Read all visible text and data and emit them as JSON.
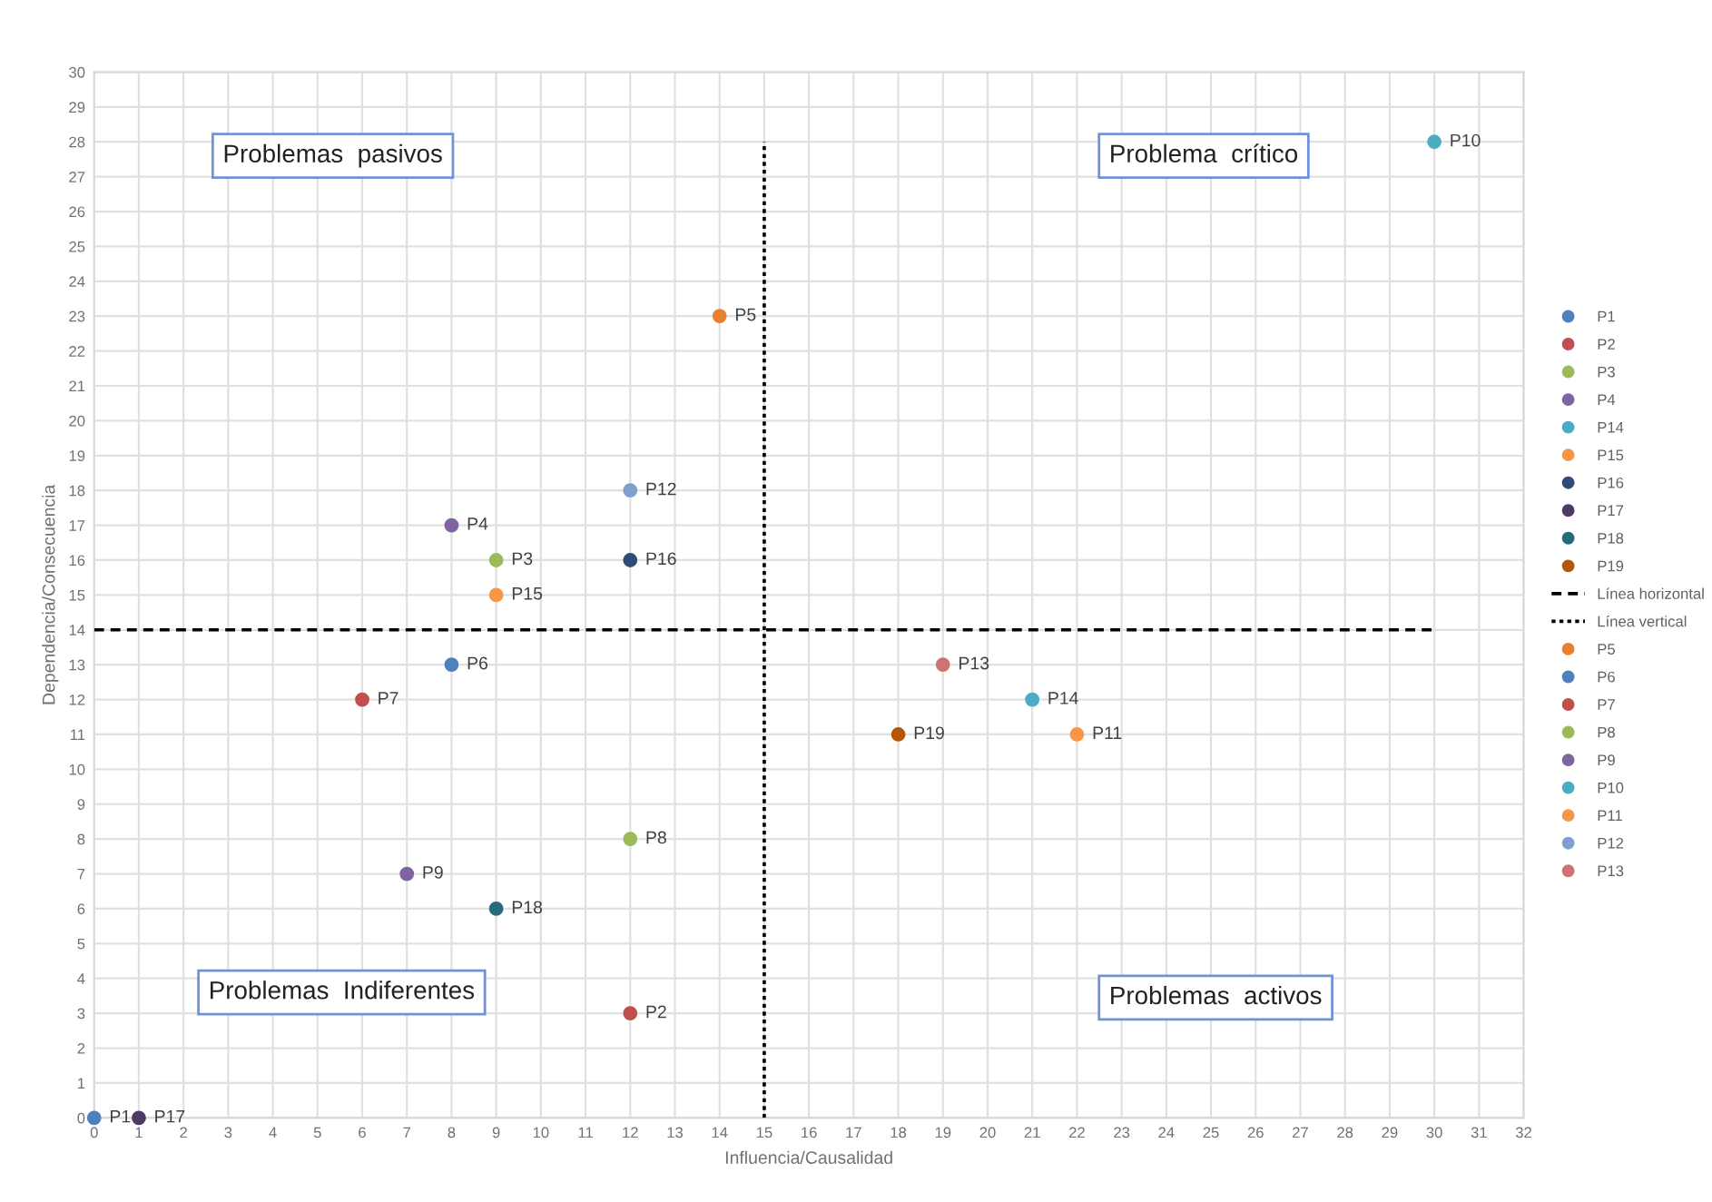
{
  "chart_data": {
    "type": "scatter",
    "xlabel": "Influencia/Causalidad",
    "ylabel": "Dependencia/Consecuencia",
    "xlim": [
      0,
      32
    ],
    "ylim": [
      0,
      30
    ],
    "xticks": [
      0,
      1,
      2,
      3,
      4,
      5,
      6,
      7,
      8,
      9,
      10,
      11,
      12,
      13,
      14,
      15,
      16,
      17,
      18,
      19,
      20,
      21,
      22,
      23,
      24,
      25,
      26,
      27,
      28,
      29,
      30,
      31,
      32
    ],
    "yticks": [
      0,
      1,
      2,
      3,
      4,
      5,
      6,
      7,
      8,
      9,
      10,
      11,
      12,
      13,
      14,
      15,
      16,
      17,
      18,
      19,
      20,
      21,
      22,
      23,
      24,
      25,
      26,
      27,
      28,
      29,
      30
    ],
    "grid": true,
    "legend": "right",
    "marker": "circle",
    "series": [
      {
        "name": "P1",
        "color": "#4f81bd",
        "x": [
          0
        ],
        "values": [
          0
        ]
      },
      {
        "name": "P2",
        "color": "#c0504d",
        "x": [
          12
        ],
        "values": [
          3
        ]
      },
      {
        "name": "P3",
        "color": "#9bbb59",
        "x": [
          9
        ],
        "values": [
          16
        ]
      },
      {
        "name": "P4",
        "color": "#8064a2",
        "x": [
          8
        ],
        "values": [
          17
        ]
      },
      {
        "name": "P14",
        "color": "#4bacc6",
        "x": [
          21
        ],
        "values": [
          12
        ]
      },
      {
        "name": "P15",
        "color": "#f79646",
        "x": [
          9
        ],
        "values": [
          15
        ]
      },
      {
        "name": "P16",
        "color": "#2c4d75",
        "x": [
          12
        ],
        "values": [
          16
        ]
      },
      {
        "name": "P17",
        "color": "#4d3b62",
        "x": [
          1
        ],
        "values": [
          0
        ]
      },
      {
        "name": "P18",
        "color": "#276a7c",
        "x": [
          9
        ],
        "values": [
          6
        ]
      },
      {
        "name": "P19",
        "color": "#b65708",
        "x": [
          18
        ],
        "values": [
          11
        ]
      },
      {
        "name": "Línea horizontal",
        "type": "line",
        "marker": "none",
        "line_style": "dashed",
        "color": "#000000",
        "x": [
          0,
          30
        ],
        "values": [
          14,
          14
        ]
      },
      {
        "name": "Línea vertical",
        "type": "line",
        "marker": "none",
        "line_style": "dotted",
        "color": "#000000",
        "x": [
          15,
          15
        ],
        "values": [
          0,
          28
        ]
      },
      {
        "name": "P5",
        "color": "#e8802f",
        "x": [
          14
        ],
        "values": [
          23
        ]
      },
      {
        "name": "P6",
        "color": "#4f81bd",
        "x": [
          8
        ],
        "values": [
          13
        ]
      },
      {
        "name": "P7",
        "color": "#c0504d",
        "x": [
          6
        ],
        "values": [
          12
        ]
      },
      {
        "name": "P8",
        "color": "#9bbb59",
        "x": [
          12
        ],
        "values": [
          8
        ]
      },
      {
        "name": "P9",
        "color": "#8064a2",
        "x": [
          7
        ],
        "values": [
          7
        ]
      },
      {
        "name": "P10",
        "color": "#4bacc6",
        "x": [
          30
        ],
        "values": [
          28
        ]
      },
      {
        "name": "P11",
        "color": "#f79646",
        "x": [
          22
        ],
        "values": [
          11
        ]
      },
      {
        "name": "P12",
        "color": "#7f9fcf",
        "x": [
          12
        ],
        "values": [
          18
        ]
      },
      {
        "name": "P13",
        "color": "#cd7371",
        "x": [
          19
        ],
        "values": [
          13
        ]
      }
    ],
    "annotations": [
      "Problemas  pasivos",
      "Problema  crítico",
      "Problemas  Indiferentes",
      "Problemas  activos"
    ]
  }
}
